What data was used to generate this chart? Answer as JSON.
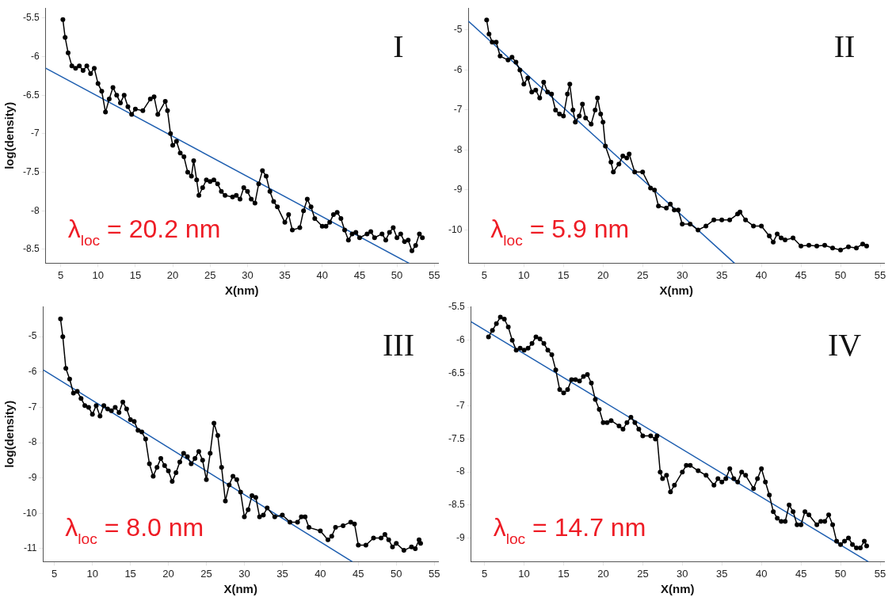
{
  "chart_data": [
    {
      "type": "line",
      "xlabel": "X(nm)",
      "ylabel": "log(density)",
      "marker": "circle",
      "grid": false,
      "legend": false,
      "xlim": [
        3,
        55.5
      ],
      "xticks": [
        5,
        10,
        15,
        20,
        25,
        30,
        35,
        40,
        45,
        50,
        55
      ],
      "ylim": [
        -8.68,
        -5.37
      ],
      "yticks": [
        -5.5,
        -6,
        -6.5,
        -7,
        -7.5,
        -8,
        -8.5
      ],
      "annotations": [
        "I",
        "λ$_{loc}$ = 20.2 nm"
      ],
      "series": [
        {
          "color": "#000000",
          "x": [
            5.3,
            5.6,
            6,
            6.5,
            7,
            7.5,
            8,
            8.5,
            9,
            9.5,
            10,
            10.5,
            11,
            11.5,
            12,
            12.5,
            13,
            13.5,
            14,
            14.5,
            15,
            16,
            17,
            17.5,
            18,
            19,
            19.3,
            19.7,
            20,
            20.5,
            21,
            21.5,
            22,
            22.5,
            22.8,
            23.2,
            23.5,
            24,
            24.5,
            25,
            25.5,
            26,
            26.5,
            27,
            28,
            28.5,
            29,
            29.5,
            30,
            30.5,
            31,
            31.5,
            32,
            32.5,
            33,
            33.5,
            34,
            35,
            35.5,
            36,
            37,
            37.5,
            38,
            38.5,
            39,
            40,
            40.5,
            41,
            41.5,
            42,
            42.5,
            43,
            43.5,
            44,
            44.5,
            45,
            46,
            46.5,
            47,
            48,
            48.5,
            49,
            49.5,
            50,
            50.5,
            51,
            51.5,
            52,
            52.5,
            53,
            53.4
          ],
          "values": [
            -5.52,
            -5.75,
            -5.95,
            -6.12,
            -6.15,
            -6.12,
            -6.18,
            -6.12,
            -6.22,
            -6.15,
            -6.35,
            -6.45,
            -6.72,
            -6.55,
            -6.4,
            -6.5,
            -6.6,
            -6.5,
            -6.65,
            -6.75,
            -6.68,
            -6.7,
            -6.55,
            -6.52,
            -6.75,
            -6.58,
            -6.7,
            -7.0,
            -7.15,
            -7.1,
            -7.25,
            -7.3,
            -7.5,
            -7.55,
            -7.35,
            -7.6,
            -7.8,
            -7.7,
            -7.6,
            -7.62,
            -7.6,
            -7.65,
            -7.75,
            -7.8,
            -7.82,
            -7.8,
            -7.85,
            -7.7,
            -7.75,
            -7.85,
            -7.9,
            -7.65,
            -7.48,
            -7.55,
            -7.75,
            -7.88,
            -7.95,
            -8.15,
            -8.05,
            -8.25,
            -8.22,
            -8.0,
            -7.85,
            -7.95,
            -8.1,
            -8.2,
            -8.2,
            -8.15,
            -8.05,
            -8.02,
            -8.1,
            -8.25,
            -8.38,
            -8.3,
            -8.28,
            -8.35,
            -8.3,
            -8.27,
            -8.35,
            -8.3,
            -8.38,
            -8.28,
            -8.22,
            -8.35,
            -8.3,
            -8.4,
            -8.38,
            -8.52,
            -8.45,
            -8.3,
            -8.35
          ]
        },
        {
          "type": "line",
          "marker": "none",
          "color": "#1f5fb0",
          "x": [
            3,
            51.6
          ],
          "values": [
            -6.15,
            -8.68
          ]
        }
      ]
    },
    {
      "type": "line",
      "xlabel": "X(nm)",
      "marker": "circle",
      "grid": false,
      "legend": false,
      "xlim": [
        3,
        55.5
      ],
      "xticks": [
        5,
        10,
        15,
        20,
        25,
        30,
        35,
        40,
        45,
        50,
        55
      ],
      "ylim": [
        -10.83,
        -4.45
      ],
      "yticks": [
        -5,
        -6,
        -7,
        -8,
        -9,
        -10
      ],
      "annotations": [
        "II",
        "λ$_{loc}$ = 5.9 nm"
      ],
      "series": [
        {
          "color": "#000000",
          "x": [
            5.3,
            5.6,
            6,
            6.5,
            7,
            8,
            8.5,
            9,
            9.5,
            10,
            10.5,
            11,
            11.5,
            12,
            12.5,
            13,
            13.5,
            14,
            14.5,
            15,
            15.5,
            15.8,
            16.2,
            16.5,
            17,
            17.4,
            17.8,
            18.5,
            19,
            19.3,
            19.7,
            20,
            20.3,
            21,
            21.3,
            22,
            22.5,
            23,
            23.3,
            24,
            25,
            26,
            26.5,
            27,
            28,
            28.5,
            29,
            29.5,
            30,
            31,
            32,
            33,
            34,
            35,
            36,
            37,
            37.3,
            38,
            39,
            40,
            41,
            41.5,
            42,
            42.5,
            43,
            44,
            45,
            46,
            47,
            48,
            49,
            50,
            51,
            52,
            52.8,
            53.3
          ],
          "values": [
            -4.75,
            -5.1,
            -5.3,
            -5.3,
            -5.65,
            -5.75,
            -5.68,
            -5.8,
            -6.0,
            -6.35,
            -6.2,
            -6.55,
            -6.5,
            -6.7,
            -6.3,
            -6.55,
            -6.6,
            -7.0,
            -7.1,
            -7.15,
            -6.6,
            -6.35,
            -7.0,
            -7.3,
            -7.15,
            -6.85,
            -7.2,
            -7.35,
            -7.0,
            -6.7,
            -7.1,
            -7.3,
            -7.9,
            -8.3,
            -8.55,
            -8.35,
            -8.15,
            -8.2,
            -8.1,
            -8.55,
            -8.55,
            -8.95,
            -9.0,
            -9.4,
            -9.45,
            -9.35,
            -9.5,
            -9.5,
            -9.85,
            -9.85,
            -10.0,
            -9.9,
            -9.75,
            -9.75,
            -9.75,
            -9.6,
            -9.55,
            -9.75,
            -9.9,
            -9.9,
            -10.15,
            -10.3,
            -10.1,
            -10.2,
            -10.25,
            -10.2,
            -10.4,
            -10.38,
            -10.4,
            -10.38,
            -10.45,
            -10.5,
            -10.42,
            -10.45,
            -10.35,
            -10.4
          ]
        },
        {
          "type": "line",
          "marker": "none",
          "color": "#1f5fb0",
          "x": [
            3,
            36.6
          ],
          "values": [
            -4.78,
            -10.83
          ]
        }
      ]
    },
    {
      "type": "line",
      "xlabel": "X(nm)",
      "ylabel": "log(density)",
      "marker": "circle",
      "grid": false,
      "legend": false,
      "xlim": [
        3.5,
        55.5
      ],
      "xticks": [
        5,
        10,
        15,
        20,
        25,
        30,
        35,
        40,
        45,
        50,
        55
      ],
      "ylim": [
        -11.37,
        -4.15
      ],
      "yticks": [
        -5,
        -6,
        -7,
        -8,
        -9,
        -10,
        -11
      ],
      "annotations": [
        "III",
        "λ$_{loc}$ = 8.0 nm"
      ],
      "series": [
        {
          "color": "#000000",
          "x": [
            5.8,
            6.1,
            6.5,
            7,
            7.5,
            8,
            8.5,
            9,
            9.5,
            10,
            10.5,
            11,
            11.5,
            12,
            12.5,
            13,
            13.5,
            14,
            14.5,
            15,
            15.5,
            16,
            16.5,
            17,
            17.5,
            18,
            18.5,
            19,
            19.5,
            20,
            20.5,
            21,
            21.5,
            22,
            22.5,
            23,
            23.5,
            24,
            24.5,
            25,
            25.5,
            26,
            26.5,
            27,
            27.5,
            28,
            28.5,
            29,
            29.5,
            30,
            30.5,
            31,
            31.5,
            32,
            32.5,
            33,
            34,
            35,
            36,
            37,
            37.5,
            38,
            38.5,
            40,
            41,
            41.5,
            42,
            43,
            44,
            44.5,
            45,
            46,
            47,
            48,
            48.5,
            49,
            49.5,
            50,
            51,
            52,
            52.5,
            53,
            53.2
          ],
          "values": [
            -4.5,
            -5.0,
            -5.9,
            -6.2,
            -6.6,
            -6.55,
            -6.75,
            -6.95,
            -7.0,
            -7.2,
            -6.95,
            -7.25,
            -6.95,
            -7.05,
            -7.1,
            -7.0,
            -7.15,
            -6.85,
            -7.05,
            -7.35,
            -7.4,
            -7.65,
            -7.7,
            -7.9,
            -8.6,
            -8.95,
            -8.7,
            -8.45,
            -8.65,
            -8.8,
            -9.1,
            -8.85,
            -8.55,
            -8.3,
            -8.4,
            -8.6,
            -8.45,
            -8.25,
            -8.5,
            -9.05,
            -8.3,
            -7.45,
            -7.8,
            -8.7,
            -9.65,
            -9.2,
            -8.95,
            -9.05,
            -9.4,
            -10.1,
            -9.9,
            -9.5,
            -9.55,
            -10.1,
            -10.05,
            -9.85,
            -10.1,
            -10.05,
            -10.25,
            -10.25,
            -10.1,
            -10.1,
            -10.4,
            -10.5,
            -10.75,
            -10.65,
            -10.4,
            -10.35,
            -10.25,
            -10.3,
            -10.9,
            -10.9,
            -10.7,
            -10.7,
            -10.6,
            -10.75,
            -10.95,
            -10.85,
            -11.05,
            -10.95,
            -11.0,
            -10.75,
            -10.85
          ]
        },
        {
          "type": "line",
          "marker": "none",
          "color": "#1f5fb0",
          "x": [
            3.6,
            44.2
          ],
          "values": [
            -5.95,
            -11.37
          ]
        }
      ]
    },
    {
      "type": "line",
      "xlabel": "X(nm)",
      "marker": "circle",
      "grid": false,
      "legend": false,
      "xlim": [
        3.3,
        55.5
      ],
      "xticks": [
        5,
        10,
        15,
        20,
        25,
        30,
        35,
        40,
        45,
        50,
        55
      ],
      "ylim": [
        -9.36,
        -5.49
      ],
      "yticks": [
        -5.5,
        -6,
        -6.5,
        -7,
        -7.5,
        -8,
        -8.5,
        -9
      ],
      "annotations": [
        "IV",
        "λ$_{loc}$ = 14.7 nm"
      ],
      "series": [
        {
          "color": "#000000",
          "x": [
            5.5,
            6,
            6.5,
            7,
            7.5,
            8,
            8.5,
            9,
            9.5,
            10,
            10.5,
            11,
            11.5,
            12,
            12.5,
            13,
            13.5,
            14,
            14.5,
            15,
            15.5,
            16,
            16.5,
            17,
            17.5,
            18,
            18.5,
            19,
            19.5,
            20,
            20.5,
            21,
            22,
            22.5,
            23,
            23.5,
            24,
            24.5,
            25,
            26,
            26.6,
            26.8,
            27.2,
            27.5,
            28,
            28.5,
            29,
            30,
            30.5,
            31,
            32,
            33,
            34,
            34.5,
            35,
            35.5,
            36,
            36.5,
            37,
            37.5,
            38,
            39,
            39.5,
            40,
            40.5,
            41,
            41.5,
            42,
            42.5,
            43,
            43.5,
            44,
            44.5,
            45,
            45.5,
            46,
            47,
            47.5,
            48,
            48.5,
            49,
            49.5,
            50,
            50.5,
            51,
            51.5,
            52,
            52.5,
            53,
            53.3
          ],
          "values": [
            -5.95,
            -5.85,
            -5.75,
            -5.65,
            -5.68,
            -5.8,
            -6.0,
            -6.15,
            -6.12,
            -6.15,
            -6.12,
            -6.05,
            -5.95,
            -5.98,
            -6.05,
            -6.15,
            -6.22,
            -6.45,
            -6.75,
            -6.8,
            -6.75,
            -6.6,
            -6.6,
            -6.62,
            -6.55,
            -6.52,
            -6.65,
            -6.9,
            -7.05,
            -7.25,
            -7.25,
            -7.22,
            -7.3,
            -7.35,
            -7.25,
            -7.17,
            -7.25,
            -7.35,
            -7.45,
            -7.45,
            -7.5,
            -7.45,
            -8.0,
            -8.1,
            -8.05,
            -8.3,
            -8.2,
            -8.0,
            -7.9,
            -7.9,
            -7.98,
            -8.05,
            -8.2,
            -8.1,
            -8.15,
            -8.1,
            -7.95,
            -8.1,
            -8.15,
            -8.0,
            -8.05,
            -8.25,
            -8.1,
            -7.95,
            -8.15,
            -8.35,
            -8.6,
            -8.7,
            -8.75,
            -8.75,
            -8.5,
            -8.6,
            -8.8,
            -8.8,
            -8.6,
            -8.65,
            -8.8,
            -8.75,
            -8.75,
            -8.65,
            -8.8,
            -9.05,
            -9.1,
            -9.05,
            -9.0,
            -9.1,
            -9.15,
            -9.15,
            -9.05,
            -9.12
          ]
        },
        {
          "type": "line",
          "marker": "none",
          "color": "#1f5fb0",
          "x": [
            3.3,
            53.5
          ],
          "values": [
            -5.72,
            -9.36
          ]
        }
      ]
    }
  ]
}
